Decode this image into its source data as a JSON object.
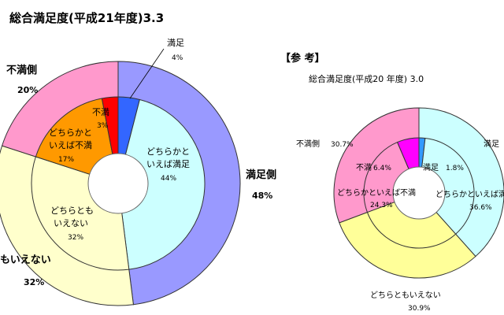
{
  "chart_data": [
    {
      "type": "pie",
      "title": "総合満足度(平成21年度)3.3",
      "outer_ring": {
        "categories": [
          "満足側",
          "もいえない",
          "不満側"
        ],
        "labels": [
          "満足側",
          "もいえない",
          "不満側"
        ],
        "values_text": [
          "48%",
          "32%",
          "20%"
        ],
        "values": [
          48,
          32,
          20
        ],
        "colors": [
          "#9999ff",
          "#ffffcc",
          "#ff99cc"
        ]
      },
      "inner_ring": {
        "categories": [
          "満足",
          "どちらかといえば満足",
          "どちらともいえない",
          "どちらかといえば不満",
          "不満"
        ],
        "labels": [
          [
            "満足"
          ],
          [
            "どちらかと",
            "いえば満足"
          ],
          [
            "どちらとも",
            "いえない"
          ],
          [
            "どちらかと",
            "いえば不満"
          ],
          [
            "不満"
          ]
        ],
        "values_text": [
          "4%",
          "44%",
          "32%",
          "17%",
          "3%"
        ],
        "values": [
          4,
          44,
          32,
          17,
          3
        ],
        "colors": [
          "#3366ff",
          "#ccffff",
          "#ffffcc",
          "#ff9900",
          "#ff0000"
        ]
      }
    },
    {
      "type": "pie",
      "header": "【参 考】",
      "title": "総合満足度(平成20 年度) 3.0",
      "outer_ring": {
        "categories": [
          "満足",
          "どちらともいえない",
          "不満側"
        ],
        "labels": [
          "満足",
          "どちらともいえない",
          "不満側"
        ],
        "values_text": [
          "",
          "30.9%",
          "30.7%"
        ],
        "values": [
          38.4,
          30.9,
          30.7
        ],
        "colors": [
          "#ccffff",
          "#ffff99",
          "#ff99cc"
        ]
      },
      "inner_ring": {
        "categories": [
          "満足",
          "どちらかといえば満足",
          "どちらともいえない",
          "どちらかといえば不満",
          "不満"
        ],
        "labels": [
          "満足",
          "どちらかといえば満足",
          "どちらともいえない",
          "どちらかといえば不満",
          "不満"
        ],
        "values_text": [
          "1.8%",
          "36.6%",
          "30.9%",
          "24.3%",
          "6.4%"
        ],
        "values": [
          1.8,
          36.6,
          30.9,
          24.3,
          6.4
        ],
        "colors": [
          "#3399ff",
          "#ccffff",
          "#ffff99",
          "#ff99cc",
          "#ff00ff"
        ]
      }
    }
  ]
}
